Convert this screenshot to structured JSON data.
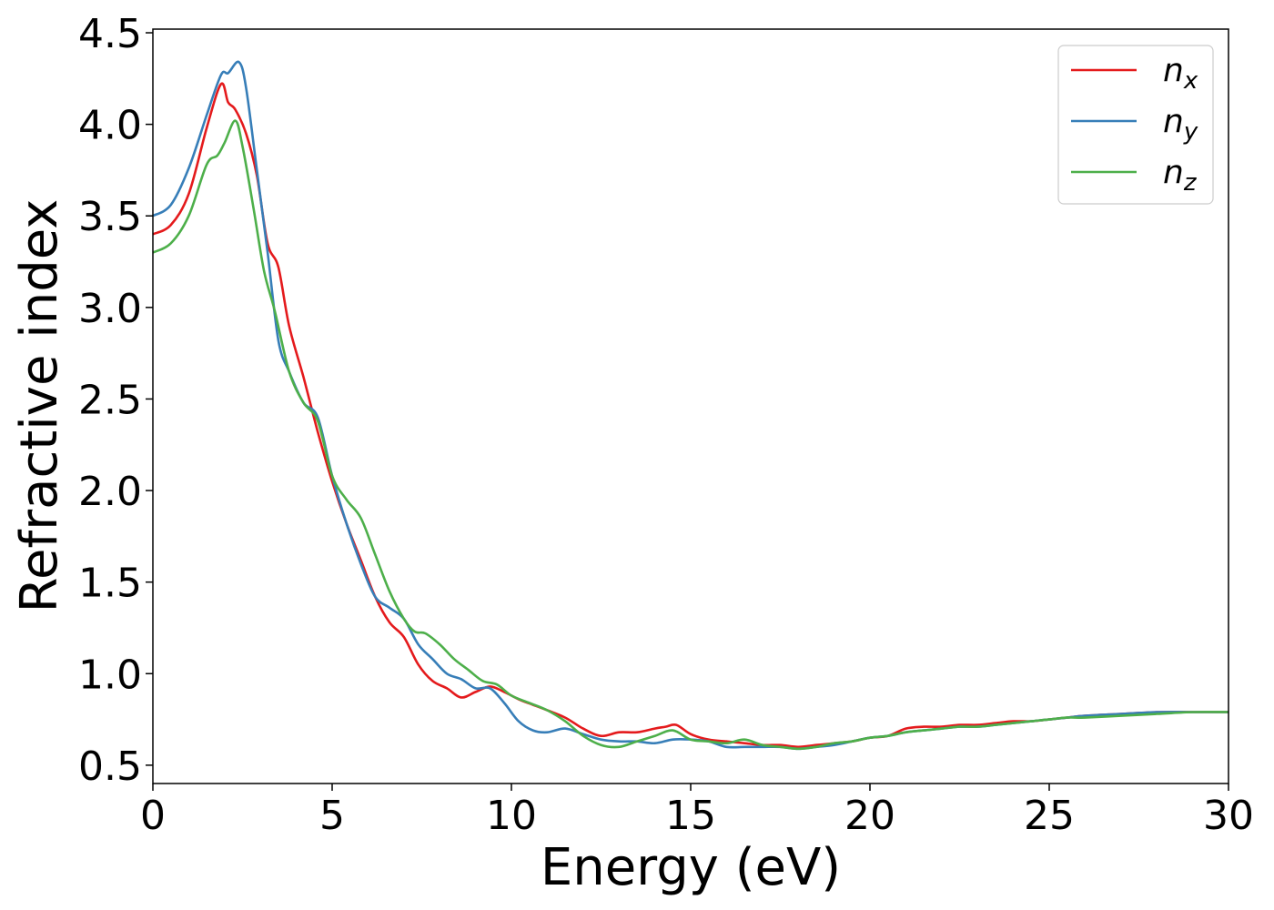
{
  "chart_data": {
    "type": "line",
    "title": "",
    "xlabel": "Energy (eV)",
    "ylabel": "Refractive index",
    "xlim": [
      0,
      30
    ],
    "ylim": [
      0.4,
      4.52
    ],
    "xticks": [
      0,
      5,
      10,
      15,
      20,
      25,
      30
    ],
    "yticks": [
      0.5,
      1.0,
      1.5,
      2.0,
      2.5,
      3.0,
      3.5,
      4.0,
      4.5
    ],
    "grid": false,
    "legend_position": "top-right",
    "series": [
      {
        "name": "n",
        "subscript": "x",
        "color": "#e41a1c",
        "x": [
          0,
          0.5,
          1.0,
          1.5,
          1.9,
          2.1,
          2.3,
          2.6,
          2.9,
          3.2,
          3.5,
          3.8,
          4.2,
          4.6,
          5.0,
          5.4,
          5.8,
          6.2,
          6.6,
          7.0,
          7.4,
          7.8,
          8.2,
          8.6,
          9.0,
          9.4,
          9.8,
          10.2,
          10.6,
          11.0,
          11.5,
          12.0,
          12.5,
          13.0,
          13.5,
          14.0,
          14.3,
          14.6,
          15.0,
          15.5,
          16.0,
          16.5,
          17.0,
          17.5,
          18.0,
          18.5,
          19.0,
          19.5,
          20.0,
          20.5,
          21.0,
          21.5,
          22.0,
          22.5,
          23.0,
          23.5,
          24.0,
          24.5,
          25.0,
          25.5,
          26.0,
          27.0,
          28.0,
          29.0,
          30.0
        ],
        "y": [
          3.4,
          3.45,
          3.62,
          3.98,
          4.22,
          4.12,
          4.08,
          3.95,
          3.72,
          3.35,
          3.22,
          2.9,
          2.62,
          2.32,
          2.05,
          1.82,
          1.62,
          1.42,
          1.28,
          1.2,
          1.05,
          0.96,
          0.92,
          0.87,
          0.9,
          0.93,
          0.9,
          0.86,
          0.83,
          0.8,
          0.76,
          0.7,
          0.66,
          0.68,
          0.68,
          0.7,
          0.71,
          0.72,
          0.67,
          0.64,
          0.63,
          0.62,
          0.61,
          0.61,
          0.6,
          0.61,
          0.62,
          0.63,
          0.65,
          0.66,
          0.7,
          0.71,
          0.71,
          0.72,
          0.72,
          0.73,
          0.74,
          0.74,
          0.75,
          0.76,
          0.77,
          0.78,
          0.79,
          0.79,
          0.79
        ]
      },
      {
        "name": "n",
        "subscript": "y",
        "color": "#377eb8",
        "x": [
          0,
          0.5,
          1.0,
          1.5,
          1.9,
          2.1,
          2.4,
          2.6,
          2.9,
          3.2,
          3.5,
          3.8,
          4.2,
          4.6,
          5.0,
          5.4,
          5.8,
          6.2,
          6.6,
          7.0,
          7.4,
          7.8,
          8.2,
          8.6,
          9.0,
          9.4,
          9.8,
          10.2,
          10.6,
          11.0,
          11.5,
          12.0,
          12.5,
          13.0,
          13.5,
          14.0,
          14.5,
          15.0,
          15.5,
          16.0,
          16.5,
          17.0,
          17.5,
          18.0,
          18.5,
          19.0,
          19.5,
          20.0,
          20.5,
          21.0,
          21.5,
          22.0,
          22.5,
          23.0,
          23.5,
          24.0,
          24.5,
          25.0,
          25.5,
          26.0,
          27.0,
          28.0,
          29.0,
          30.0
        ],
        "y": [
          3.5,
          3.56,
          3.76,
          4.05,
          4.27,
          4.28,
          4.34,
          4.2,
          3.75,
          3.3,
          2.82,
          2.65,
          2.48,
          2.4,
          2.08,
          1.82,
          1.6,
          1.42,
          1.36,
          1.3,
          1.16,
          1.08,
          1.0,
          0.97,
          0.92,
          0.92,
          0.84,
          0.74,
          0.69,
          0.68,
          0.7,
          0.67,
          0.64,
          0.63,
          0.63,
          0.62,
          0.64,
          0.64,
          0.63,
          0.6,
          0.6,
          0.6,
          0.6,
          0.59,
          0.6,
          0.61,
          0.63,
          0.65,
          0.66,
          0.68,
          0.69,
          0.7,
          0.71,
          0.71,
          0.72,
          0.73,
          0.74,
          0.75,
          0.76,
          0.77,
          0.78,
          0.79,
          0.79,
          0.79
        ]
      },
      {
        "name": "n",
        "subscript": "z",
        "color": "#4daf4a",
        "x": [
          0,
          0.5,
          1.0,
          1.5,
          1.8,
          2.0,
          2.3,
          2.5,
          2.8,
          3.1,
          3.4,
          3.8,
          4.2,
          4.6,
          5.0,
          5.4,
          5.8,
          6.2,
          6.6,
          7.0,
          7.3,
          7.6,
          8.0,
          8.4,
          8.8,
          9.2,
          9.6,
          10.0,
          10.5,
          11.0,
          11.5,
          12.0,
          12.5,
          13.0,
          13.5,
          14.0,
          14.5,
          15.0,
          15.5,
          16.0,
          16.5,
          17.0,
          17.5,
          18.0,
          18.5,
          19.0,
          19.5,
          20.0,
          20.5,
          21.0,
          21.5,
          22.0,
          22.5,
          23.0,
          23.5,
          24.0,
          24.5,
          25.0,
          25.5,
          26.0,
          27.0,
          28.0,
          29.0,
          30.0
        ],
        "y": [
          3.3,
          3.35,
          3.5,
          3.78,
          3.83,
          3.9,
          4.02,
          3.88,
          3.55,
          3.2,
          2.98,
          2.65,
          2.48,
          2.38,
          2.08,
          1.95,
          1.85,
          1.65,
          1.45,
          1.3,
          1.23,
          1.22,
          1.16,
          1.08,
          1.02,
          0.96,
          0.94,
          0.88,
          0.84,
          0.8,
          0.74,
          0.66,
          0.61,
          0.6,
          0.63,
          0.66,
          0.69,
          0.64,
          0.63,
          0.62,
          0.64,
          0.61,
          0.6,
          0.59,
          0.6,
          0.62,
          0.63,
          0.65,
          0.66,
          0.68,
          0.69,
          0.7,
          0.71,
          0.71,
          0.72,
          0.73,
          0.74,
          0.75,
          0.76,
          0.76,
          0.77,
          0.78,
          0.79,
          0.79
        ]
      }
    ]
  }
}
